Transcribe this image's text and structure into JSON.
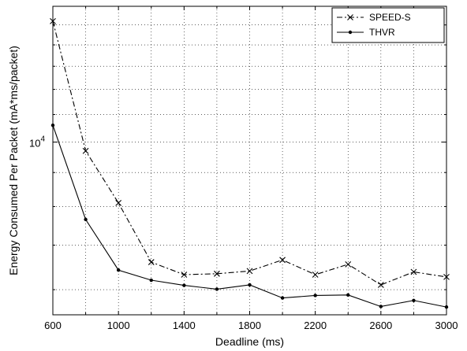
{
  "chart_data": {
    "type": "line",
    "title": "",
    "xlabel": "Deadline (ms)",
    "ylabel": "Energy Consumed Per Packet (mA*ms/packet)",
    "xlim": [
      600,
      3000
    ],
    "y_scale": "log",
    "ylim": [
      5500,
      16000
    ],
    "grid": true,
    "grid_style": "dotted",
    "legend_position": "top-right",
    "x_ticks": [
      600,
      1000,
      1400,
      1800,
      2200,
      2600,
      3000
    ],
    "x_tick_labels": [
      "600",
      "1000",
      "1400",
      "1800",
      "2200",
      "2600",
      "3000"
    ],
    "x_minor_grid": [
      800,
      1200,
      1600,
      2000,
      2400,
      2800
    ],
    "y_major_tick": {
      "value": 10000,
      "label_base": "10",
      "label_exp": "4"
    },
    "y_minor_grid": [
      6000,
      7000,
      8000,
      9000,
      11000,
      12000,
      13000,
      14000,
      15000
    ],
    "x": [
      600,
      800,
      1000,
      1200,
      1400,
      1600,
      1800,
      2000,
      2200,
      2400,
      2600,
      2800,
      3000
    ],
    "series": [
      {
        "name": "SPEED-S",
        "marker": "x",
        "line_style": "dashdot",
        "color": "#000000",
        "values": [
          15200,
          9700,
          8100,
          6600,
          6320,
          6340,
          6400,
          6650,
          6320,
          6550,
          6100,
          6380,
          6270
        ]
      },
      {
        "name": "THVR",
        "marker": "dot",
        "line_style": "solid",
        "color": "#000000",
        "values": [
          10600,
          7650,
          6420,
          6200,
          6090,
          6010,
          6100,
          5830,
          5880,
          5890,
          5660,
          5780,
          5650
        ]
      }
    ]
  }
}
